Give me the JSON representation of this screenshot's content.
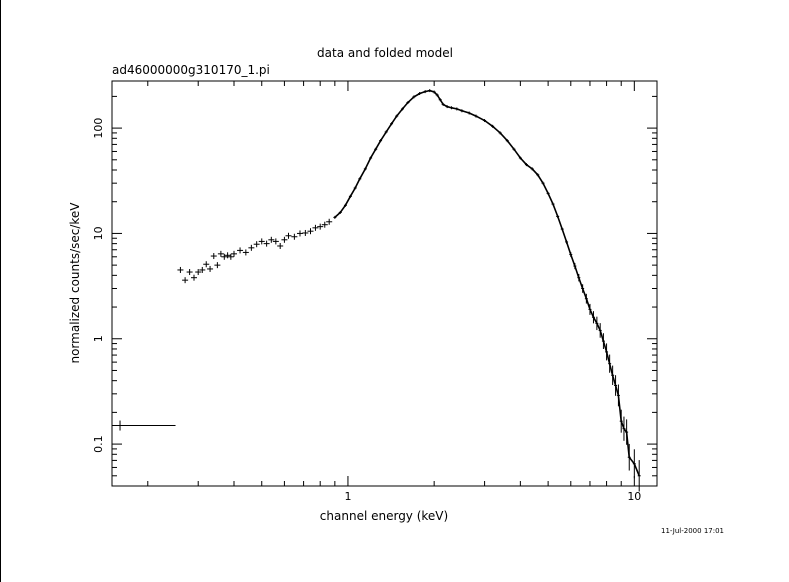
{
  "chart_data": {
    "type": "scatter",
    "title": "data and folded model",
    "subtitle": "ad46000000g310170_1.pi",
    "xlabel": "channel energy (keV)",
    "ylabel": "normalized counts/sec/keV",
    "timestamp": "11-Jul-2000 17:01",
    "x_scale": "log",
    "y_scale": "log",
    "xlim": [
      0.15,
      12
    ],
    "ylim": [
      0.04,
      280
    ],
    "x_ticks": [
      {
        "value": 1,
        "label": "1"
      },
      {
        "value": 10,
        "label": "10"
      }
    ],
    "y_ticks": [
      {
        "value": 0.1,
        "label": "0.1"
      },
      {
        "value": 1,
        "label": "1"
      },
      {
        "value": 10,
        "label": "10"
      },
      {
        "value": 100,
        "label": "100"
      }
    ],
    "grid": false,
    "low_bin": {
      "x": 0.16,
      "x_low": 0.15,
      "x_high": 0.25,
      "y": 0.15
    },
    "points": [
      [
        0.26,
        4.5
      ],
      [
        0.27,
        3.6
      ],
      [
        0.28,
        4.3
      ],
      [
        0.29,
        3.8
      ],
      [
        0.3,
        4.3
      ],
      [
        0.31,
        4.5
      ],
      [
        0.32,
        5.1
      ],
      [
        0.33,
        4.6
      ],
      [
        0.34,
        6.1
      ],
      [
        0.35,
        5.0
      ],
      [
        0.36,
        6.4
      ],
      [
        0.37,
        6.0
      ],
      [
        0.38,
        6.2
      ],
      [
        0.39,
        6.0
      ],
      [
        0.4,
        6.4
      ],
      [
        0.42,
        6.9
      ],
      [
        0.44,
        6.6
      ],
      [
        0.46,
        7.3
      ],
      [
        0.48,
        7.9
      ],
      [
        0.5,
        8.4
      ],
      [
        0.52,
        8.0
      ],
      [
        0.54,
        8.7
      ],
      [
        0.56,
        8.4
      ],
      [
        0.58,
        7.6
      ],
      [
        0.6,
        8.7
      ],
      [
        0.62,
        9.5
      ],
      [
        0.65,
        9.3
      ],
      [
        0.68,
        10.0
      ],
      [
        0.71,
        10.1
      ],
      [
        0.74,
        10.5
      ],
      [
        0.77,
        11.3
      ],
      [
        0.8,
        11.6
      ],
      [
        0.83,
        12.1
      ],
      [
        0.86,
        12.9
      ],
      [
        0.9,
        14.2
      ],
      [
        0.94,
        15.8
      ],
      [
        0.98,
        18.5
      ],
      [
        1.02,
        22.5
      ],
      [
        1.06,
        27.0
      ],
      [
        1.1,
        33.0
      ],
      [
        1.15,
        41.0
      ],
      [
        1.2,
        52.0
      ],
      [
        1.25,
        63.0
      ],
      [
        1.3,
        76.0
      ],
      [
        1.36,
        92.0
      ],
      [
        1.42,
        110.0
      ],
      [
        1.48,
        130.0
      ],
      [
        1.55,
        152.0
      ],
      [
        1.62,
        175.0
      ],
      [
        1.7,
        198.0
      ],
      [
        1.78,
        213.0
      ],
      [
        1.86,
        222.0
      ],
      [
        1.93,
        227.0
      ],
      [
        2.0,
        220.0
      ],
      [
        2.05,
        206.0
      ],
      [
        2.1,
        186.0
      ],
      [
        2.15,
        168.0
      ],
      [
        2.22,
        160.0
      ],
      [
        2.3,
        156.0
      ],
      [
        2.4,
        152.0
      ],
      [
        2.5,
        146.0
      ],
      [
        2.65,
        139.0
      ],
      [
        2.8,
        130.0
      ],
      [
        3.0,
        118.0
      ],
      [
        3.2,
        104.0
      ],
      [
        3.4,
        90.0
      ],
      [
        3.6,
        76.0
      ],
      [
        3.8,
        63.0
      ],
      [
        4.0,
        52.0
      ],
      [
        4.2,
        45.0
      ],
      [
        4.4,
        41.0
      ],
      [
        4.6,
        36.0
      ],
      [
        4.8,
        30.0
      ],
      [
        5.0,
        24.0
      ],
      [
        5.2,
        19.0
      ],
      [
        5.4,
        14.5
      ],
      [
        5.6,
        11.0
      ],
      [
        5.8,
        8.3
      ],
      [
        6.0,
        6.3
      ],
      [
        6.2,
        4.9
      ],
      [
        6.4,
        3.8
      ],
      [
        6.6,
        3.0
      ],
      [
        6.8,
        2.4
      ],
      [
        7.0,
        1.9
      ],
      [
        7.2,
        1.6
      ],
      [
        7.4,
        1.4
      ],
      [
        7.6,
        1.2
      ],
      [
        7.8,
        0.95
      ],
      [
        8.0,
        0.75
      ],
      [
        8.2,
        0.58
      ],
      [
        8.4,
        0.45
      ],
      [
        8.6,
        0.36
      ],
      [
        8.8,
        0.29
      ],
      [
        9.0,
        0.165
      ],
      [
        9.2,
        0.14
      ],
      [
        9.4,
        0.13
      ],
      [
        9.6,
        0.075
      ],
      [
        10.0,
        0.065
      ],
      [
        10.4,
        0.05
      ]
    ]
  }
}
